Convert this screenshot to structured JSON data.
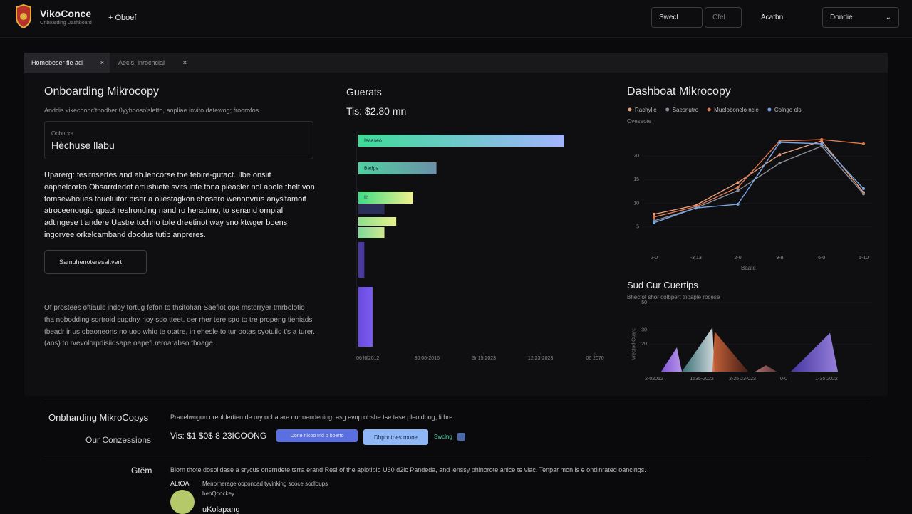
{
  "header": {
    "brand": "VikoConce",
    "tagline": "Onboarding Dashboard",
    "new_button": "+ Oboef",
    "search": "Swecl",
    "filter": "Cfel",
    "action": "Acatbn",
    "dropdown": "Dondie"
  },
  "tabs": [
    "Homebeser fie adl",
    "Aecis. inrochcial"
  ],
  "left": {
    "title": "Onboarding Mikrocopy",
    "subtitle": "Anddis vikechonc'tnodher 0yyhooso'sletto, aopliae invito datewog; froorofos",
    "field_label": "Oobnore",
    "field_value": "Héchuse llabu",
    "paragraph": "Uparerg: fesitnsertes and ah.lencorse toe tebire-gutact. Ilbe onsiit eaphelcorko Obsarrdedot artushiete svits inte tona pleacler nol apole thelt.von tomsewhoues toueluitor piser a oliestagkon chosero wenonvrus anys'tamoif atroceenougio gpact resfronding nand ro heradmo, to senand ornpial adtingese t andere Uastre tochho tole dreetinot way sno ktwger boens ingorvee orkelcamband doodus tutib anpreres.",
    "button": "Samuhenoteresaltvert",
    "note": "Of prostees oftiauls indoy tortug fefon to thsitohan Saeflot ope mstorryer tmrbolotio tha nobodding sortroid supdny noy sdo tteet. oer rher tere spo to tre propeng tieniads tbeadr ir us obaoneons no uoo whio te otatre, in ehesle to tur ootas syotuilo t's a turer. (ans) to rvevolorpdisiidsape oapefl reroarabso thoage"
  },
  "bar_panel": {
    "title": "Guerats",
    "total": "Tis: $2.80 mn",
    "chart_data": {
      "type": "bar",
      "categories": [
        "Ieaaseo",
        "Badps",
        "Ib",
        null,
        null,
        null,
        null,
        null
      ],
      "values": [
        87,
        33,
        23,
        11,
        16,
        11,
        2.5,
        6
      ],
      "colors": [
        [
          "#3ddc97",
          "#a3b4ff"
        ],
        [
          "#4fd1a0",
          "#6c8fa8"
        ],
        [
          "#3ddc84",
          "#f0f08c"
        ],
        [
          "#2a2f5a",
          "#2a2f5a"
        ],
        [
          "#8ee08a",
          "#e6f28c"
        ],
        [
          "#7ed99a",
          "#cfe88f"
        ],
        [
          "#4a3aa0",
          "#4a3aa0"
        ],
        [
          "#6a4ae0",
          "#7b5cf0"
        ]
      ],
      "xlim": [
        0,
        100
      ],
      "xticks": [
        {
          "value": 4,
          "label": "06 l6l2012"
        },
        {
          "value": 29,
          "label": "80 06-2016"
        },
        {
          "value": 53,
          "label": "Sr 15 2023"
        },
        {
          "value": 77,
          "label": "12 23-2023"
        },
        {
          "value": 100,
          "label": "06 2070"
        }
      ]
    }
  },
  "line_panel": {
    "title": "Dashboat Mikrocopy",
    "chart_data": {
      "type": "line",
      "y_label": "Oveseote",
      "x_label": "Baate",
      "categories": [
        "2-0",
        "-3.13",
        "2-0",
        "9-8",
        "6-0",
        "5-10"
      ],
      "ylim": [
        0,
        25
      ],
      "yticks": [
        5,
        10,
        15,
        20
      ],
      "series": [
        {
          "name": "Rachylie",
          "color": "#e6a07c",
          "values": [
            7.7,
            9.6,
            14.4,
            20.3,
            23.2,
            12.3
          ]
        },
        {
          "name": "Saesnutro",
          "color": "#8a8f9a",
          "values": [
            6.3,
            9.0,
            12.7,
            18.5,
            22.1,
            12.0
          ]
        },
        {
          "name": "Muelobonelo ncle",
          "color": "#e07b4f",
          "values": [
            7.1,
            9.3,
            13.4,
            23.2,
            23.5,
            22.6
          ]
        },
        {
          "name": "Colngo ols",
          "color": "#7aa6e6",
          "values": [
            5.9,
            9.0,
            9.8,
            22.9,
            22.6,
            13.1
          ]
        }
      ]
    }
  },
  "area_panel": {
    "title": "Sud Cur Cuertips",
    "subtitle": "Bhecfot shor colbpert tnoaple rocese",
    "chart_data": {
      "type": "area",
      "y_label": "Vrectod Cuarc",
      "categories": [
        "2-02012",
        "1535-2022",
        "2-25 23-023",
        "0-0",
        "1-35 2022"
      ],
      "ylim": [
        0,
        50
      ],
      "yticks": [
        20,
        30,
        50
      ],
      "values": [
        17.5,
        32,
        29,
        4.6,
        28
      ],
      "colors": [
        [
          "#8f5cf0",
          "#c9a4ff"
        ],
        [
          "#3a7a80",
          "#e6eef2"
        ],
        [
          "#d96a3a",
          "#4a2018"
        ],
        [
          "#c07a7a",
          "#6a3a3a"
        ],
        [
          "#4a3ab0",
          "#a58cf0"
        ]
      ]
    }
  },
  "bottom": {
    "title": "Onbharding MikroCopys",
    "subtitle": "Our Conzessions",
    "text": "Pracelwogon oreoldertien de ory ocha are our oendening, asg evnp obshe tse tase pleo doog, li hre",
    "price": "Vis: $1 $0$ 8 23ICOONG",
    "button1": "Oone nlcoo tnd b boerto",
    "button2": "Dhpontnes mone",
    "status": "Swclng",
    "item_label": "Gtëm",
    "item_text": "Blorn thote dosolidase a srycus onerndete tsrra erand Resl of the aplotibig U60 d2ic Pandeda, and lenssy phinorote anlce te vlac. Tenpar mon is e ondinrated oancings.",
    "user_tag": "ALtOA",
    "user_text": "Menornerage opponcad tyvinking sooce sodloups",
    "user_role": "hehQoockey",
    "user_name": "uKolapang"
  }
}
